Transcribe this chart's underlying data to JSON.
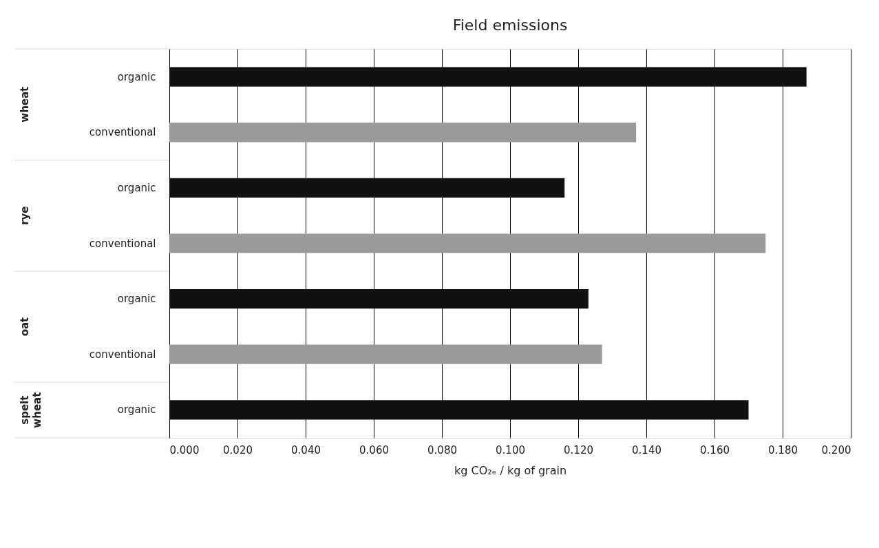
{
  "chart_data": {
    "type": "bar",
    "orientation": "horizontal",
    "title": "Field emissions",
    "xlabel": "kg CO₂ₑ / kg of grain",
    "categories": [
      "organic",
      "conventional",
      "organic",
      "conventional",
      "organic",
      "conventional",
      "organic"
    ],
    "values": [
      0.187,
      0.137,
      0.116,
      0.175,
      0.123,
      0.127,
      0.17
    ],
    "colors": [
      "#111111",
      "#9a9a9a",
      "#111111",
      "#9a9a9a",
      "#111111",
      "#9a9a9a",
      "#111111"
    ],
    "annotations": [
      "wheat",
      "rye",
      "oat",
      "spelt wheat"
    ],
    "xlim": [
      0,
      0.2
    ],
    "xticks": [
      {
        "value": 0,
        "label": "0.000"
      },
      {
        "value": 0.02,
        "label": "0.020"
      },
      {
        "value": 0.04,
        "label": "0.040"
      },
      {
        "value": 0.06,
        "label": "0.060"
      },
      {
        "value": 0.08,
        "label": "0.080"
      },
      {
        "value": 0.1,
        "label": "0.100"
      },
      {
        "value": 0.12,
        "label": "0.120"
      },
      {
        "value": 0.14,
        "label": "0.140"
      },
      {
        "value": 0.16,
        "label": "0.160"
      },
      {
        "value": 0.18,
        "label": "0.180"
      },
      {
        "value": 0.2,
        "label": "0.200"
      }
    ],
    "grid": "x"
  }
}
